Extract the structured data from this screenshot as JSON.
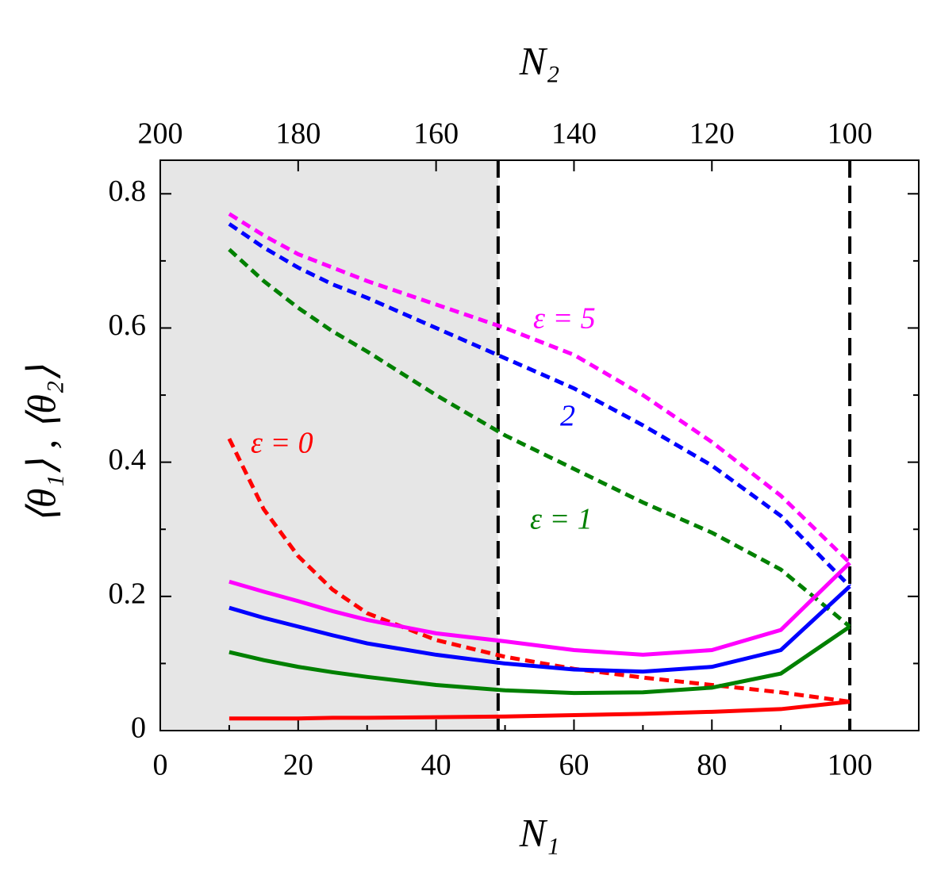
{
  "chart_data": {
    "type": "line",
    "xlabel": "N₁",
    "x2label": "N₂",
    "ylabel": "⟨θ₁⟩ , ⟨θ₂⟩",
    "x": [
      10,
      15,
      20,
      25,
      30,
      40,
      50,
      60,
      70,
      80,
      90,
      100
    ],
    "series": [
      {
        "color": "#ff0000",
        "dash": false,
        "values": [
          0.018,
          0.018,
          0.018,
          0.019,
          0.019,
          0.02,
          0.021,
          0.023,
          0.025,
          0.028,
          0.032,
          0.043
        ]
      },
      {
        "color": "#ff0000",
        "dash": true,
        "values": [
          0.435,
          0.33,
          0.26,
          0.21,
          0.175,
          0.135,
          0.11,
          0.092,
          0.079,
          0.068,
          0.057,
          0.043
        ]
      },
      {
        "color": "#008000",
        "dash": false,
        "values": [
          0.117,
          0.105,
          0.095,
          0.087,
          0.08,
          0.068,
          0.06,
          0.056,
          0.057,
          0.064,
          0.085,
          0.155
        ]
      },
      {
        "color": "#008000",
        "dash": true,
        "values": [
          0.717,
          0.67,
          0.63,
          0.595,
          0.565,
          0.5,
          0.44,
          0.39,
          0.34,
          0.295,
          0.24,
          0.155
        ]
      },
      {
        "color": "#0000ff",
        "dash": false,
        "values": [
          0.183,
          0.168,
          0.155,
          0.142,
          0.13,
          0.113,
          0.1,
          0.091,
          0.088,
          0.095,
          0.12,
          0.215
        ]
      },
      {
        "color": "#0000ff",
        "dash": true,
        "values": [
          0.755,
          0.72,
          0.69,
          0.665,
          0.645,
          0.6,
          0.555,
          0.51,
          0.455,
          0.395,
          0.32,
          0.215
        ]
      },
      {
        "color": "#ff00ff",
        "dash": false,
        "values": [
          0.222,
          0.207,
          0.193,
          0.178,
          0.165,
          0.145,
          0.133,
          0.12,
          0.113,
          0.12,
          0.15,
          0.25
        ]
      },
      {
        "color": "#ff00ff",
        "dash": true,
        "values": [
          0.77,
          0.738,
          0.71,
          0.69,
          0.67,
          0.635,
          0.6,
          0.56,
          0.5,
          0.43,
          0.35,
          0.25
        ]
      }
    ],
    "annotations": [
      {
        "text": "ε = 5",
        "color": "#ff00ff"
      },
      {
        "text": "2",
        "color": "#0000ff"
      },
      {
        "text": "ε = 0",
        "color": "#ff0000"
      },
      {
        "text": "ε = 1",
        "color": "#008000"
      }
    ],
    "xlim": [
      0,
      110
    ],
    "xticks": [
      0,
      20,
      40,
      60,
      80,
      100
    ],
    "xminorticks": [
      10,
      30,
      50,
      70,
      90,
      110
    ],
    "x2lim": [
      200,
      90
    ],
    "x2ticks": [
      200,
      180,
      160,
      140,
      120,
      100
    ],
    "ylim": [
      0,
      0.85
    ],
    "yticks": [
      0,
      0.2,
      0.4,
      0.6,
      0.8
    ],
    "yminorticks": [
      0.1,
      0.3,
      0.5,
      0.7
    ],
    "shaded_region": [
      0,
      49
    ],
    "vlines": [
      49,
      100
    ]
  }
}
